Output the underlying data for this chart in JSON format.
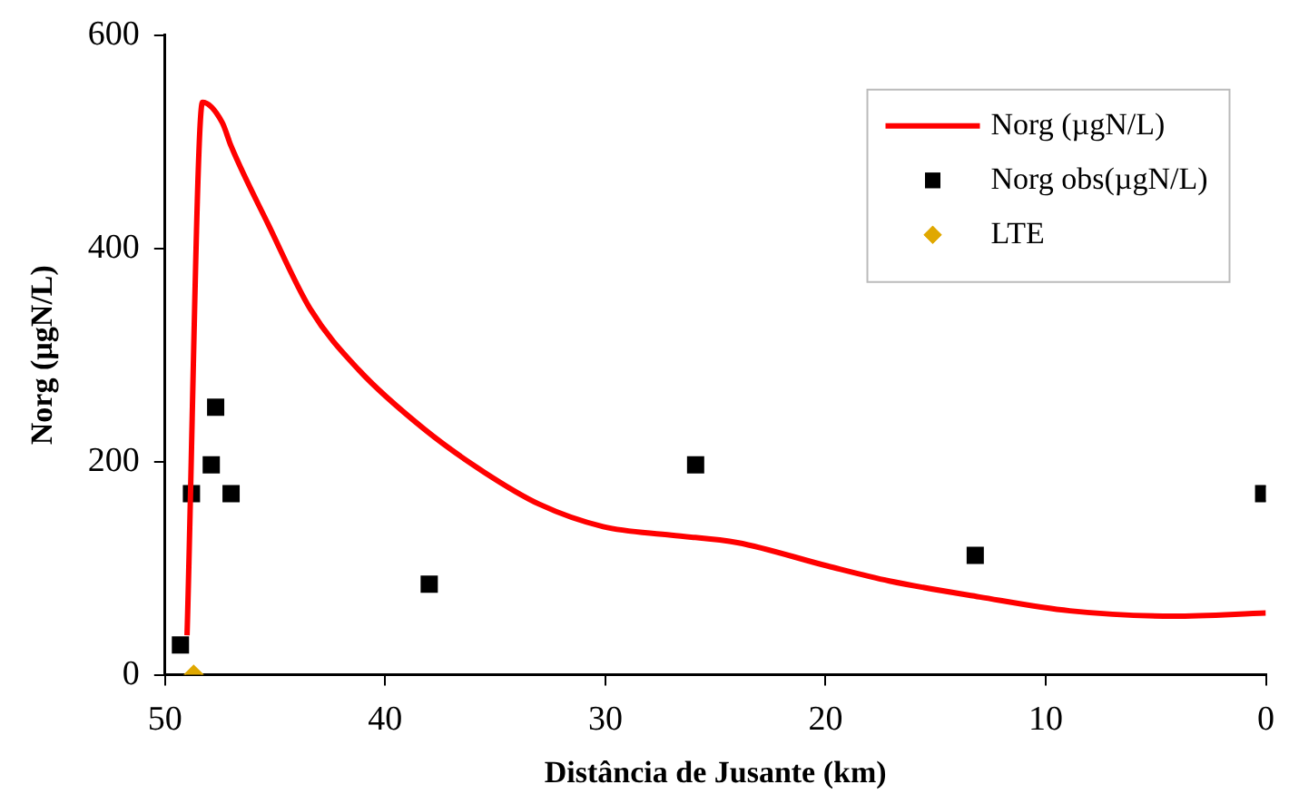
{
  "chart_data": {
    "type": "scatter",
    "xlabel": "Distância de Jusante (km)",
    "ylabel": "Norg (µgN/L)",
    "xlim": [
      50,
      0
    ],
    "xticks": [
      50,
      40,
      30,
      20,
      10,
      0
    ],
    "ylim": [
      0,
      600
    ],
    "yticks": [
      0,
      200,
      400,
      600
    ],
    "grid": false,
    "legend": "top right",
    "series": [
      {
        "name": "Norg (µgN/L)",
        "type": "line",
        "color": "#ff0000",
        "marker": "none",
        "line_style": "solid",
        "x": [
          49.0,
          48.3,
          47.4,
          47.0,
          45.3,
          43.4,
          41.2,
          38.2,
          35.5,
          33.0,
          30.1,
          27.0,
          24.0,
          19.9,
          17.1,
          13.0,
          8.9,
          4.2,
          0
        ],
        "values": [
          37,
          537,
          518,
          496,
          422,
          343,
          286,
          230,
          190,
          160,
          139,
          131,
          124,
          102,
          88,
          73,
          60,
          55,
          58
        ]
      },
      {
        "name": "Norg obs(µgN/L)",
        "color": "#000000",
        "marker": "square",
        "x": [
          49.3,
          48.8,
          47.9,
          47.7,
          47.0,
          38.0,
          25.9,
          13.2,
          0.1
        ],
        "values": [
          28,
          170,
          197,
          251,
          170,
          85,
          197,
          112,
          170
        ]
      },
      {
        "name": "LTE",
        "color": "#e0a800",
        "marker": "diamond",
        "x": [
          48.7
        ],
        "values": [
          0
        ]
      }
    ]
  }
}
